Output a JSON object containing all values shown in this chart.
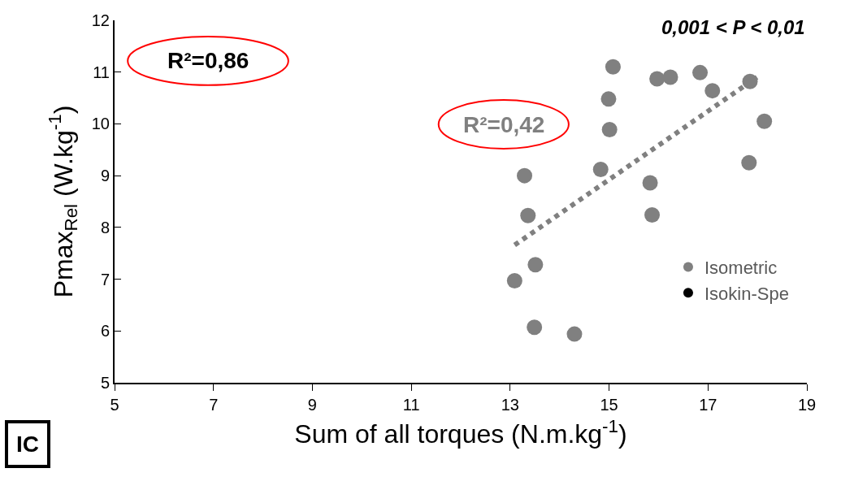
{
  "chart_data": {
    "type": "scatter",
    "xlabel": "Sum of all torques (N.m.kg$^{-1}$)",
    "ylabel": "Pmax$_{Rel}$ (W.kg$^{-1}$)",
    "xlim": [
      5,
      19
    ],
    "xticks": [
      5,
      7,
      9,
      11,
      13,
      15,
      17,
      19
    ],
    "ylim": [
      5,
      12
    ],
    "yticks": [
      5,
      6,
      7,
      8,
      9,
      10,
      11,
      12
    ],
    "legend": "bottom right",
    "marker": "circle",
    "series": [
      {
        "name": "Isometric",
        "color": "#808080",
        "x": [
          15.08,
          14.99,
          15.01,
          15.97,
          16.24,
          16.84,
          17.09,
          17.85,
          18.14,
          17.83,
          13.29,
          14.83,
          15.83,
          15.87,
          13.36,
          13.51,
          13.09,
          13.49,
          14.3
        ],
        "values": [
          11.1,
          10.48,
          9.89,
          10.87,
          10.9,
          10.99,
          10.64,
          10.82,
          10.05,
          9.25,
          9.0,
          9.12,
          8.86,
          8.24,
          8.23,
          7.28,
          6.97,
          6.07,
          5.94
        ]
      },
      {
        "name": "Isokin-Spe",
        "color": "#000000",
        "x": [
          null
        ],
        "values": [
          null
        ]
      },
      {
        "type": "line",
        "color": "#808080",
        "line_style": "dotted",
        "marker": "none",
        "x": [
          13.09,
          17.99
        ],
        "values": [
          7.66,
          10.9
        ]
      }
    ],
    "annotations": [
      "R²=0,86",
      "R²=0,42",
      "0,001 < P < 0,01",
      "IC"
    ]
  }
}
